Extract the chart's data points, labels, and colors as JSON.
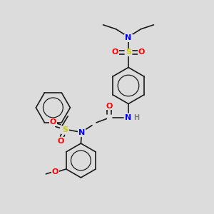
{
  "bg_color": "#dcdcdc",
  "bond_color": "#1a1a1a",
  "colors": {
    "N": "#0000ff",
    "O": "#ff0000",
    "S": "#cccc00",
    "H": "#808080",
    "C": "#1a1a1a"
  }
}
